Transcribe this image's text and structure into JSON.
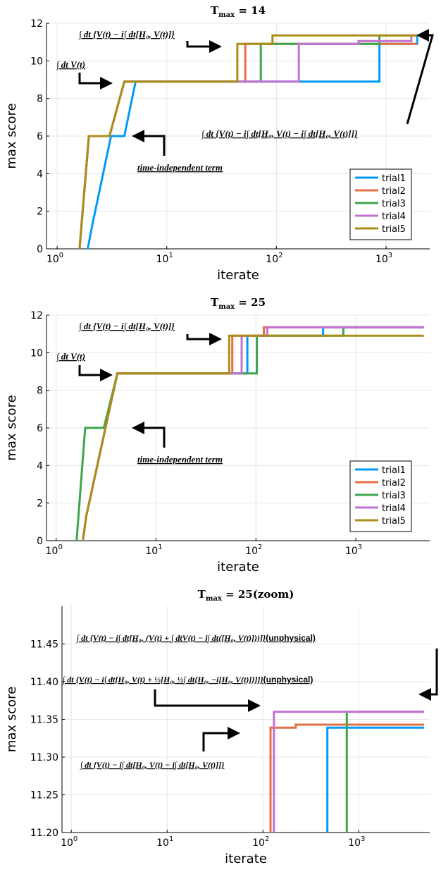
{
  "chart_data": [
    {
      "type": "line",
      "title": "T_max = 14",
      "title_main": "T",
      "title_sub": "max",
      "title_rest": " = 14",
      "xlabel": "iterate",
      "ylabel": "max score",
      "xscale": "log",
      "xlim": [
        0.8,
        2500
      ],
      "ylim": [
        0,
        12
      ],
      "xticks": [
        1,
        10,
        100,
        1000
      ],
      "xtick_labels": [
        {
          "base": "10",
          "exp": "0"
        },
        {
          "base": "10",
          "exp": "1"
        },
        {
          "base": "10",
          "exp": "2"
        },
        {
          "base": "10",
          "exp": "3"
        }
      ],
      "yticks": [
        0,
        2,
        4,
        6,
        8,
        10,
        12
      ],
      "ytick_labels": [
        "0",
        "2",
        "4",
        "6",
        "8",
        "10",
        "12"
      ],
      "grid": true,
      "legend_position": "bottom-right",
      "series": [
        {
          "name": "trial1",
          "color": "#009AFA",
          "x": [
            1.9,
            2.1,
            3.1,
            4.1,
            5.2,
            870,
            870,
            1920,
            1920
          ],
          "y": [
            0,
            1.3,
            6.0,
            6.0,
            8.9,
            8.9,
            10.9,
            10.9,
            11.35
          ]
        },
        {
          "name": "trial2",
          "color": "#E36F47",
          "x": [
            1.6,
            1.95,
            3.0,
            4.1,
            52,
            52,
            1920
          ],
          "y": [
            0,
            6.0,
            6.0,
            8.9,
            8.9,
            10.9,
            10.9
          ]
        },
        {
          "name": "trial3",
          "color": "#3EA44E",
          "x": [
            1.6,
            1.95,
            3.0,
            4.1,
            72,
            72,
            870,
            870,
            1920
          ],
          "y": [
            0,
            6.0,
            6.0,
            8.9,
            8.9,
            10.9,
            10.9,
            11.35,
            11.35
          ]
        },
        {
          "name": "trial4",
          "color": "#C371D2",
          "x": [
            1.6,
            1.95,
            3.0,
            4.1,
            160,
            160,
            560,
            560,
            1700,
            1700,
            1920
          ],
          "y": [
            0,
            6.0,
            6.0,
            8.9,
            8.9,
            10.9,
            10.9,
            11.05,
            11.05,
            11.35,
            11.35
          ]
        },
        {
          "name": "trial5",
          "color": "#AC8D18",
          "x": [
            1.6,
            1.95,
            3.0,
            4.1,
            44,
            44,
            92,
            92,
            1920
          ],
          "y": [
            0,
            6.0,
            6.0,
            8.9,
            8.9,
            10.9,
            10.9,
            11.35,
            11.35
          ]
        }
      ],
      "annotations": [
        {
          "id": "a1",
          "text": "∫ dt {V(t) − i∫ dt[H₀, V(t)]}"
        },
        {
          "id": "a2",
          "text": "∫ dt V(t)"
        },
        {
          "id": "a3",
          "text": "∫ dt {V(t) − i∫ dt[H₀, V(t) − i∫ dt[H₀, V(t)]]}"
        },
        {
          "id": "a4",
          "text": "time-independent term"
        }
      ]
    },
    {
      "type": "line",
      "title": "T_max = 25",
      "title_main": "T",
      "title_sub": "max",
      "title_rest": " = 25",
      "xlabel": "iterate",
      "ylabel": "max score",
      "xscale": "log",
      "xlim": [
        0.8,
        5500
      ],
      "ylim": [
        0,
        12
      ],
      "xticks": [
        1,
        10,
        100,
        1000
      ],
      "xtick_labels": [
        {
          "base": "10",
          "exp": "0"
        },
        {
          "base": "10",
          "exp": "1"
        },
        {
          "base": "10",
          "exp": "2"
        },
        {
          "base": "10",
          "exp": "3"
        }
      ],
      "yticks": [
        0,
        2,
        4,
        6,
        8,
        10,
        12
      ],
      "ytick_labels": [
        "0",
        "2",
        "4",
        "6",
        "8",
        "10",
        "12"
      ],
      "grid": true,
      "legend_position": "bottom-right",
      "series": [
        {
          "name": "trial1",
          "color": "#009AFA",
          "x": [
            1.85,
            2.0,
            4.1,
            82,
            82,
            470,
            470,
            4800
          ],
          "y": [
            0,
            1.3,
            8.9,
            8.9,
            10.9,
            10.9,
            11.35,
            11.35
          ]
        },
        {
          "name": "trial2",
          "color": "#E36F47",
          "x": [
            1.85,
            2.0,
            4.1,
            4.9,
            6.0,
            58,
            58,
            120,
            120,
            4800
          ],
          "y": [
            0,
            1.3,
            8.9,
            8.9,
            8.9,
            8.9,
            10.9,
            10.9,
            11.35,
            11.35
          ]
        },
        {
          "name": "trial3",
          "color": "#3EA44E",
          "x": [
            1.6,
            1.95,
            3.0,
            4.1,
            102,
            102,
            750,
            750,
            4800
          ],
          "y": [
            0,
            6.0,
            6.0,
            8.9,
            8.9,
            10.9,
            10.9,
            11.35,
            11.35
          ]
        },
        {
          "name": "trial4",
          "color": "#C371D2",
          "x": [
            1.85,
            2.0,
            4.1,
            72,
            72,
            130,
            130,
            4800
          ],
          "y": [
            0,
            1.3,
            8.9,
            8.9,
            10.9,
            10.9,
            11.35,
            11.35
          ]
        },
        {
          "name": "trial5",
          "color": "#AC8D18",
          "x": [
            1.85,
            2.0,
            4.1,
            54,
            54,
            4800
          ],
          "y": [
            0,
            1.3,
            8.9,
            8.9,
            10.9,
            10.9
          ]
        }
      ],
      "annotations": [
        {
          "id": "a1",
          "text": "∫ dt {V(t) − i∫ dt[H₀, V(t)]}"
        },
        {
          "id": "a2",
          "text": "∫ dt V(t)"
        },
        {
          "id": "a4",
          "text": "time-independent term"
        }
      ]
    },
    {
      "type": "line",
      "title": "T_max = 25(zoom)",
      "title_main": "T",
      "title_sub": "max",
      "title_rest": " = 25(zoom)",
      "xlabel": "iterate",
      "ylabel": "max score",
      "xscale": "log",
      "xlim": [
        0.8,
        5500
      ],
      "ylim": [
        11.2,
        11.5
      ],
      "xticks": [
        1,
        10,
        100,
        1000
      ],
      "xtick_labels": [
        {
          "base": "10",
          "exp": "0"
        },
        {
          "base": "10",
          "exp": "1"
        },
        {
          "base": "10",
          "exp": "2"
        },
        {
          "base": "10",
          "exp": "3"
        }
      ],
      "yticks": [
        11.2,
        11.25,
        11.3,
        11.35,
        11.4,
        11.45
      ],
      "ytick_labels": [
        "11.20",
        "11.25",
        "11.30",
        "11.35",
        "11.40",
        "11.45"
      ],
      "grid": true,
      "series": [
        {
          "name": "trial1",
          "color": "#009AFA",
          "x": [
            470,
            470,
            4800
          ],
          "y": [
            11.1,
            11.339,
            11.339
          ]
        },
        {
          "name": "trial2",
          "color": "#E36F47",
          "x": [
            120,
            120,
            220,
            220,
            4800
          ],
          "y": [
            11.1,
            11.339,
            11.339,
            11.343,
            11.343
          ]
        },
        {
          "name": "trial3",
          "color": "#3EA44E",
          "x": [
            750,
            750,
            4800
          ],
          "y": [
            11.1,
            11.36,
            11.36
          ]
        },
        {
          "name": "trial4",
          "color": "#C371D2",
          "x": [
            130,
            130,
            4800
          ],
          "y": [
            11.1,
            11.36,
            11.36
          ]
        }
      ],
      "annotations": [
        {
          "id": "z1",
          "text": "∫ dt {V(t) − i∫ dt[H₀, (V(t) + ∫ dtV(t) − i∫ dt([H₀, V(t)]))]}",
          "suffix": "(unphysical)"
        },
        {
          "id": "z2",
          "text": "∫ dt {V(t) − i∫ dt[H₀, V(t) + ½[H₀, ½∫ dt{H₀, −i[H₀, V(t)]}]]}",
          "suffix": "(unphysical)"
        },
        {
          "id": "z3",
          "text": "∫ dt {V(t) − i∫ dt[H₀, V(t) − i∫ dt[H₀, V(t)]]}"
        }
      ]
    }
  ]
}
